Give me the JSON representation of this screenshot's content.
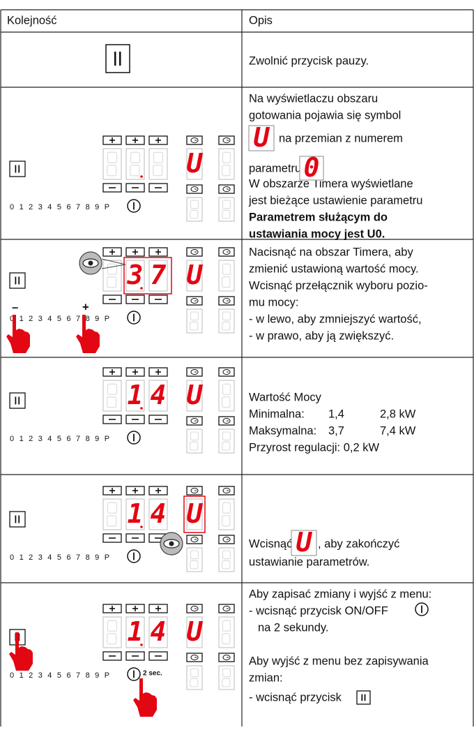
{
  "header": {
    "col1": "Kolejność",
    "col2": "Opis"
  },
  "rows": [
    {
      "description": [
        "Zwolnić przycisk pauzy."
      ]
    },
    {
      "panel": {
        "timer": "U",
        "scale": "0 1 2 3 4 5 6 7 8 9 P"
      },
      "description": [
        "Na wyświetlaczu obszaru",
        "gotowania pojawia się symbol",
        "na przemian z numerem",
        "parametru",
        "W obszarze Timera wyświetlane",
        "jest bieżące ustawienie parametru"
      ],
      "emphasis": [
        "Parametrem służącym do",
        "ustawiania mocy jest U0."
      ],
      "symbols": [
        "U",
        "0"
      ]
    },
    {
      "panel": {
        "displays": [
          "3",
          "7"
        ],
        "timer": "U",
        "scale": "0 1 2 3 4 5 6 7 8 9 P",
        "marks": [
          "–",
          "+"
        ]
      },
      "description": [
        "Nacisnąć na obszar Timera, aby",
        "zmienić ustawioną wartość mocy.",
        "Wcisnąć przełącznik wyboru pozio-",
        "mu mocy:",
        "- w lewo, aby zmniejszyć wartość,",
        "- w prawo, aby ją zwiększyć."
      ]
    },
    {
      "panel": {
        "displays": [
          "1",
          "4"
        ],
        "timer": "U",
        "scale": "0 1 2 3 4 5 6 7 8 9 P"
      },
      "title": "Wartość Mocy",
      "table": [
        {
          "label": "Minimalna:",
          "values": [
            "1,4",
            "2,8 kW"
          ]
        },
        {
          "label": "Maksymalna:",
          "values": [
            "3,7",
            "7,4 kW"
          ]
        }
      ],
      "footer": "Przyrost regulacji: 0,2 kW"
    },
    {
      "panel": {
        "displays": [
          "1",
          "4"
        ],
        "timer": "U",
        "scale": "0 1 2 3 4 5 6 7 8 9 P"
      },
      "description": [
        "Wcisnąć",
        ", aby zakończyć",
        "ustawianie parametrów."
      ],
      "symbols": [
        "U"
      ]
    },
    {
      "panel": {
        "displays": [
          "1",
          "4"
        ],
        "timer": "U",
        "scale": "0 1 2 3 4 5 6 7 8 9 P",
        "hold": "2 sec."
      },
      "description": [
        "Aby zapisać zmiany i wyjść z menu:",
        "- wcisnąć przycisk ON/OFF",
        "na 2 sekundy.",
        "Aby wyjść z menu bez zapisywania",
        "zmian:",
        "- wcisnąć przycisk"
      ]
    }
  ]
}
